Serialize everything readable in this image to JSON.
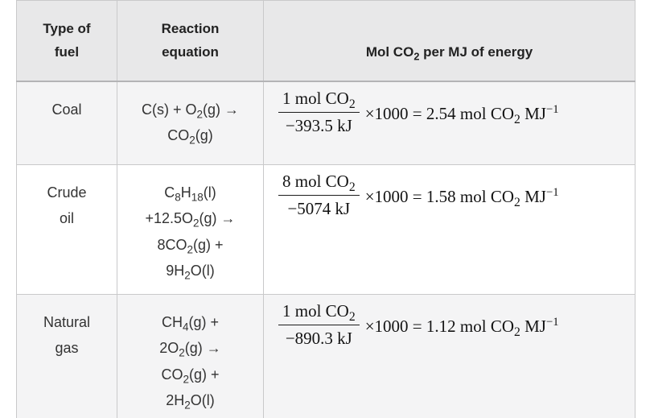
{
  "colors": {
    "header_bg": "#e8e8e9",
    "row_alt_bg": "#f4f4f5",
    "row_bg": "#ffffff",
    "border": "#c9c9ca",
    "header_border": "#b4b4b6",
    "heading_text": "#222222",
    "body_text": "#333333",
    "math_text": "#131313"
  },
  "table": {
    "header": {
      "fuel": "Type of\nfuel",
      "equation": "Reaction\nequation",
      "mol_per_mj": "Mol CO_{2} per MJ of energy"
    },
    "rows": [
      {
        "fuel": "Coal",
        "equation": "C(s) + O_{2}(g) →\nCO_{2}(g)",
        "formula": {
          "numerator": "1 mol CO_{2}",
          "denominator": "−393.5 kJ",
          "rest": "×1000 = 2.54 mol CO_{2} MJ^{−1}"
        }
      },
      {
        "fuel": "Crude\noil",
        "equation": "C_{8}H_{18}(l)\n+12.5O_{2}(g) →\n8CO_{2}(g) +\n9H_{2}O(l)",
        "formula": {
          "numerator": "8 mol CO_{2}",
          "denominator": "−5074 kJ",
          "rest": "×1000 = 1.58 mol CO_{2} MJ^{−1}"
        }
      },
      {
        "fuel": "Natural\ngas",
        "equation": "CH_{4}(g) +\n2O_{2}(g) →\nCO_{2}(g) +\n2H_{2}O(l)",
        "formula": {
          "numerator": "1 mol CO_{2}",
          "denominator": "−890.3 kJ",
          "rest": "×1000 = 1.12 mol CO_{2} MJ^{−1}"
        }
      }
    ]
  }
}
